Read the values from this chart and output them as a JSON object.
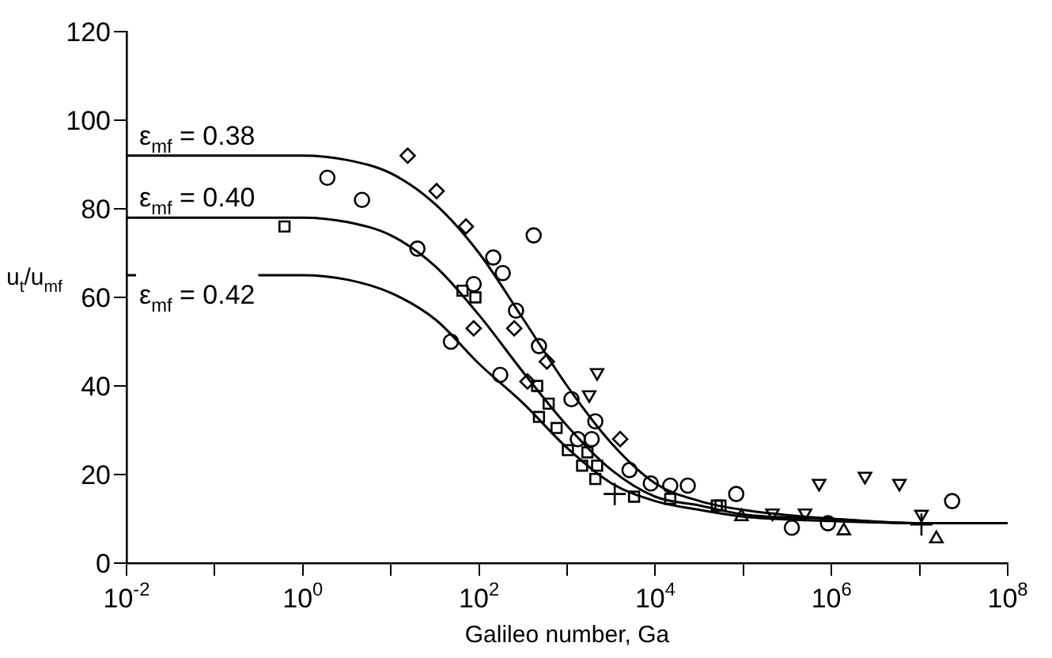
{
  "chart_data": {
    "type": "scatter",
    "xlabel": "Galileo number, Ga",
    "ylabel": "u$_{t}$/u$_{mf}$",
    "log": "x",
    "grid": false,
    "legend": false,
    "xlim": [
      0.01,
      100000000
    ],
    "ylim": [
      0,
      120
    ],
    "xticks": [
      {
        "value": 0.01,
        "label": "10$^{-2}$"
      },
      {
        "value": 0.1,
        "label": null
      },
      {
        "value": 1,
        "label": "10$^{0}$"
      },
      {
        "value": 10,
        "label": null
      },
      {
        "value": 100,
        "label": "10$^{2}$"
      },
      {
        "value": 1000,
        "label": null
      },
      {
        "value": 10000,
        "label": "10$^{4}$"
      },
      {
        "value": 100000,
        "label": null
      },
      {
        "value": 1000000,
        "label": "10$^{6}$"
      },
      {
        "value": 10000000,
        "label": null
      },
      {
        "value": 100000000,
        "label": "10$^{8}$"
      }
    ],
    "yticks": [
      0,
      20,
      40,
      60,
      80,
      100,
      120
    ],
    "annotations": [
      "ε$_{mf}$ = 0.38",
      "ε$_{mf}$ = 0.40",
      "ε$_{mf}$ = 0.42"
    ],
    "series": [
      {
        "type": "line",
        "marker": "none",
        "color": "#000000",
        "x": [
          0.01,
          1,
          3.2,
          10,
          32,
          100,
          320,
          1000,
          3200,
          10000,
          32000,
          100000,
          1000000,
          10000000,
          100000000
        ],
        "values": [
          92,
          92,
          91,
          88,
          81,
          70,
          55,
          40,
          27,
          18,
          14,
          12,
          10,
          9,
          9
        ]
      },
      {
        "type": "line",
        "marker": "none",
        "color": "#000000",
        "x": [
          0.01,
          1,
          3.2,
          10,
          32,
          100,
          320,
          1000,
          3200,
          10000,
          32000,
          100000,
          1000000,
          10000000,
          100000000
        ],
        "values": [
          78,
          78,
          77,
          74,
          67,
          56,
          43,
          31,
          21,
          15,
          13,
          11,
          10,
          9,
          9
        ]
      },
      {
        "type": "line",
        "marker": "none",
        "color": "#000000",
        "x": [
          0.01,
          1,
          3.2,
          10,
          32,
          100,
          320,
          1000,
          3200,
          10000,
          32000,
          100000,
          1000000,
          10000000,
          100000000
        ],
        "values": [
          65,
          65,
          64,
          61,
          55,
          45,
          36,
          26,
          18,
          14,
          12,
          10.5,
          9.5,
          9,
          9
        ]
      },
      {
        "marker": "circle",
        "color": "#000000",
        "x": [
          1.9,
          4.7,
          20,
          87,
          48,
          174,
          145,
          186,
          263,
          417,
          479,
          1120,
          2090,
          1320,
          5100,
          8900,
          14800,
          23400,
          1900,
          83000,
          355000,
          912000,
          23400000
        ],
        "values": [
          87,
          82,
          71,
          63,
          50,
          42.5,
          69,
          65.5,
          57,
          74,
          49,
          37,
          32,
          28,
          21,
          18,
          17.5,
          17.5,
          28,
          15.6,
          8,
          9,
          14
        ]
      },
      {
        "marker": "diamond",
        "color": "#000000",
        "x": [
          15.5,
          33,
          71,
          251,
          87,
          589,
          355,
          4000
        ],
        "values": [
          92,
          84,
          76,
          53,
          53,
          45.5,
          41,
          28
        ]
      },
      {
        "marker": "square",
        "color": "#000000",
        "x": [
          0.62,
          65,
          91,
          457,
          617,
          479,
          759,
          1020,
          1700,
          1480,
          2190,
          2090,
          5750,
          14800,
          50000,
          55000
        ],
        "values": [
          76,
          61.5,
          60,
          40,
          36,
          33,
          30.5,
          25.5,
          25,
          22,
          22,
          19,
          15,
          14.5,
          13,
          13
        ]
      },
      {
        "marker": "triangle-down",
        "color": "#000000",
        "x": [
          2190,
          1780,
          724000,
          2400000,
          5900000,
          10500000,
          214000,
          501000
        ],
        "values": [
          43,
          38,
          18,
          19.6,
          18,
          11,
          11.3,
          11.3
        ]
      },
      {
        "marker": "triangle",
        "color": "#000000",
        "x": [
          95000,
          1380000,
          15500000
        ],
        "values": [
          10.5,
          7.3,
          5.5
        ]
      },
      {
        "marker": "cross",
        "color": "#000000",
        "x": [
          3470,
          10500000
        ],
        "values": [
          15.6,
          8.7
        ]
      }
    ]
  }
}
